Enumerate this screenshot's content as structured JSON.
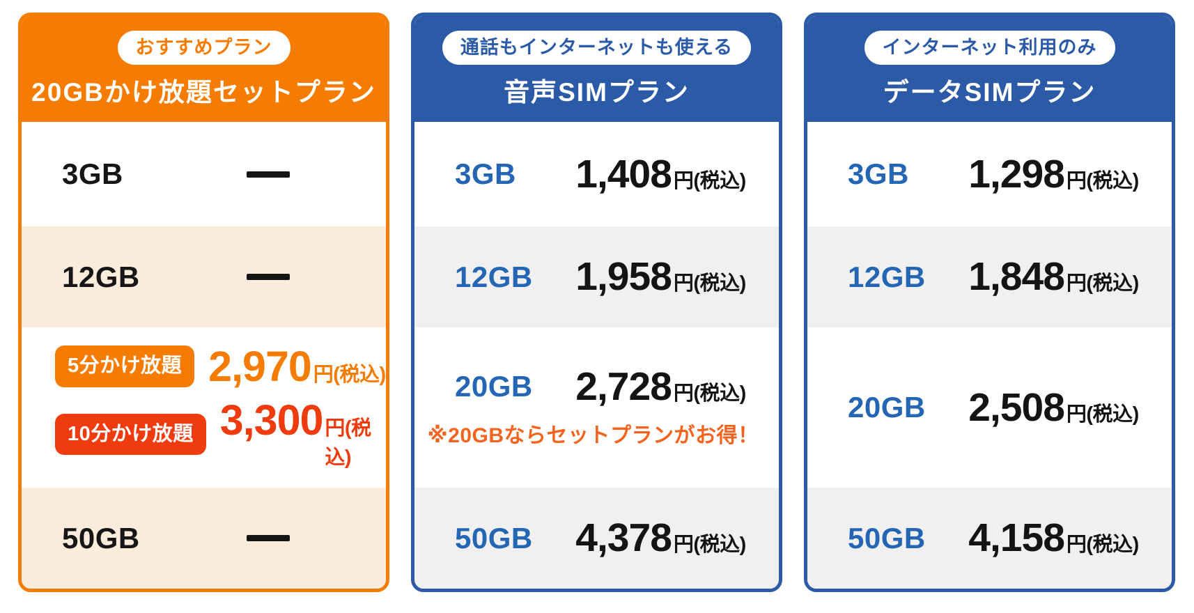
{
  "colors": {
    "orange": "#f57c00",
    "red_orange": "#ee3c0f",
    "blue": "#2b5aa7",
    "label_blue": "#2465b4",
    "tint_peach": "#fcecdc",
    "tint_gray": "#f0f0f1",
    "note_orange": "#f4641e",
    "text_black": "#141414"
  },
  "cards": [
    {
      "badge": "おすすめプラン",
      "title": "20GBかけ放題セットプラン",
      "rows": [
        {
          "label": "3GB",
          "value": "—"
        },
        {
          "label": "12GB",
          "value": "—"
        },
        {
          "options": [
            {
              "badge": "5分かけ放題",
              "price": "2,970",
              "suffix": "円(税込)"
            },
            {
              "badge": "10分かけ放題",
              "price": "3,300",
              "suffix": "円(税込)"
            }
          ]
        },
        {
          "label": "50GB",
          "value": "—"
        }
      ]
    },
    {
      "badge": "通話もインターネットも使える",
      "title": "音声SIMプラン",
      "rows": [
        {
          "label": "3GB",
          "price": "1,408",
          "suffix": "円(税込)"
        },
        {
          "label": "12GB",
          "price": "1,958",
          "suffix": "円(税込)"
        },
        {
          "label": "20GB",
          "price": "2,728",
          "suffix": "円(税込)",
          "note": "※20GBならセットプランがお得！"
        },
        {
          "label": "50GB",
          "price": "4,378",
          "suffix": "円(税込)"
        }
      ]
    },
    {
      "badge": "インターネット利用のみ",
      "title": "データSIMプラン",
      "rows": [
        {
          "label": "3GB",
          "price": "1,298",
          "suffix": "円(税込)"
        },
        {
          "label": "12GB",
          "price": "1,848",
          "suffix": "円(税込)"
        },
        {
          "label": "20GB",
          "price": "2,508",
          "suffix": "円(税込)"
        },
        {
          "label": "50GB",
          "price": "4,158",
          "suffix": "円(税込)"
        }
      ]
    }
  ]
}
